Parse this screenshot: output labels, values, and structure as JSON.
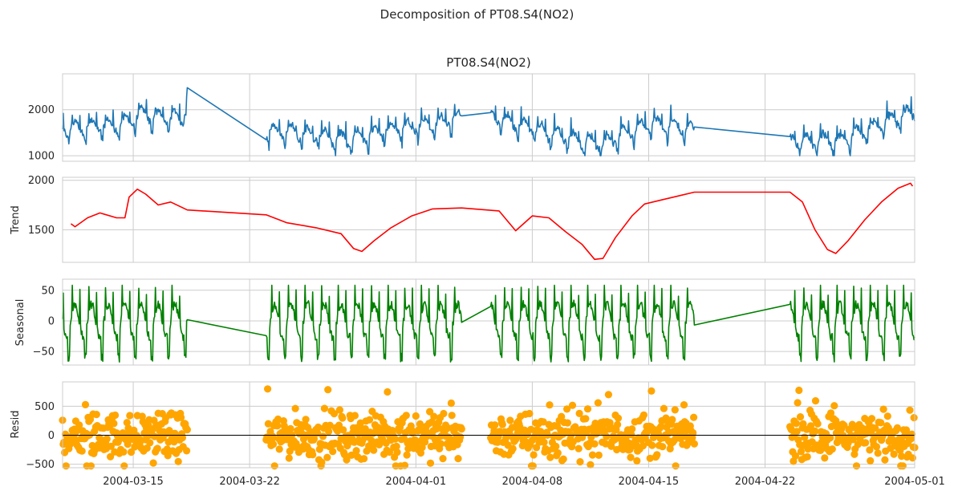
{
  "title": "Decomposition of PT08.S4(NO2)",
  "chart_data": {
    "type": "line",
    "title": "Decomposition of PT08.S4(NO2)",
    "x_axis": {
      "type": "date",
      "xlim": [
        "2004-03-10T18:00",
        "2004-05-01T00:00"
      ],
      "ticks": [
        "2004-03-15",
        "2004-03-22",
        "2004-04-01",
        "2004-04-08",
        "2004-04-15",
        "2004-04-22",
        "2004-05-01"
      ],
      "tick_labels": [
        "2004-03-15",
        "2004-03-22",
        "2004-04-01",
        "2004-04-08",
        "2004-04-15",
        "2004-04-22",
        "2004-05-01"
      ]
    },
    "segments": [
      [
        "2004-03-10T18:00",
        "2004-03-18T06:00"
      ],
      [
        "2004-03-23T00:00",
        "2004-04-03T18:00"
      ],
      [
        "2004-04-05T12:00",
        "2004-04-17T18:00"
      ],
      [
        "2004-04-23T12:00",
        "2004-05-01T00:00"
      ]
    ],
    "grid": true,
    "panels": [
      {
        "key": "observed",
        "title": "PT08.S4(NO2)",
        "ylabel": "",
        "color": "#1f77b4",
        "style": "line",
        "ylim": [
          880,
          2780
        ],
        "yticks": [
          1000,
          2000
        ],
        "range": [
          1000,
          2700
        ],
        "level_points": [
          [
            "2004-03-10T18:00",
            1600
          ],
          [
            "2004-03-14T00:00",
            1650
          ],
          [
            "2004-03-15T12:00",
            1900
          ],
          [
            "2004-03-18T00:00",
            1800
          ],
          [
            "2004-03-18T06:00",
            2470
          ],
          [
            "2004-03-23T00:00",
            1550
          ],
          [
            "2004-03-25T00:00",
            1500
          ],
          [
            "2004-03-28T00:00",
            1350
          ],
          [
            "2004-03-30T00:00",
            1550
          ],
          [
            "2004-04-02T00:00",
            1700
          ],
          [
            "2004-04-03T18:00",
            1830
          ],
          [
            "2004-04-05T12:00",
            1850
          ],
          [
            "2004-04-07T00:00",
            1700
          ],
          [
            "2004-04-09T00:00",
            1500
          ],
          [
            "2004-04-12T00:00",
            1250
          ],
          [
            "2004-04-15T00:00",
            1700
          ],
          [
            "2004-04-17T18:00",
            1580
          ],
          [
            "2004-04-23T12:00",
            1320
          ],
          [
            "2004-04-26T12:00",
            1350
          ],
          [
            "2004-04-29T00:00",
            1700
          ],
          [
            "2004-05-01T00:00",
            1950
          ]
        ],
        "amplitude": 300
      },
      {
        "key": "trend",
        "title": "",
        "ylabel": "Trend",
        "color": "#ff0000",
        "style": "line",
        "ylim": [
          1170,
          2030
        ],
        "yticks": [
          1500,
          2000
        ],
        "range": [
          1190,
          1980
        ],
        "points": [
          [
            "2004-03-11T06:00",
            1560
          ],
          [
            "2004-03-11T12:00",
            1530
          ],
          [
            "2004-03-12T06:00",
            1620
          ],
          [
            "2004-03-13T00:00",
            1670
          ],
          [
            "2004-03-14T00:00",
            1620
          ],
          [
            "2004-03-14T12:00",
            1620
          ],
          [
            "2004-03-14T18:00",
            1830
          ],
          [
            "2004-03-15T06:00",
            1910
          ],
          [
            "2004-03-15T18:00",
            1860
          ],
          [
            "2004-03-16T12:00",
            1750
          ],
          [
            "2004-03-17T06:00",
            1780
          ],
          [
            "2004-03-18T06:00",
            1700
          ],
          [
            "2004-03-23T00:00",
            1650
          ],
          [
            "2004-03-24T06:00",
            1570
          ],
          [
            "2004-03-26T00:00",
            1520
          ],
          [
            "2004-03-27T12:00",
            1460
          ],
          [
            "2004-03-28T06:00",
            1310
          ],
          [
            "2004-03-28T18:00",
            1280
          ],
          [
            "2004-03-29T12:00",
            1390
          ],
          [
            "2004-03-30T12:00",
            1520
          ],
          [
            "2004-03-31T18:00",
            1640
          ],
          [
            "2004-04-02T00:00",
            1710
          ],
          [
            "2004-04-03T18:00",
            1720
          ],
          [
            "2004-04-06T00:00",
            1690
          ],
          [
            "2004-04-07T00:00",
            1490
          ],
          [
            "2004-04-08T00:00",
            1640
          ],
          [
            "2004-04-09T00:00",
            1620
          ],
          [
            "2004-04-10T00:00",
            1480
          ],
          [
            "2004-04-11T00:00",
            1350
          ],
          [
            "2004-04-11T18:00",
            1200
          ],
          [
            "2004-04-12T06:00",
            1210
          ],
          [
            "2004-04-13T00:00",
            1420
          ],
          [
            "2004-04-14T00:00",
            1640
          ],
          [
            "2004-04-14T18:00",
            1760
          ],
          [
            "2004-04-15T18:00",
            1800
          ],
          [
            "2004-04-17T00:00",
            1850
          ],
          [
            "2004-04-17T18:00",
            1880
          ],
          [
            "2004-04-23T12:00",
            1880
          ],
          [
            "2004-04-24T06:00",
            1780
          ],
          [
            "2004-04-25T00:00",
            1500
          ],
          [
            "2004-04-25T18:00",
            1300
          ],
          [
            "2004-04-26T06:00",
            1260
          ],
          [
            "2004-04-27T00:00",
            1390
          ],
          [
            "2004-04-28T00:00",
            1600
          ],
          [
            "2004-04-29T00:00",
            1780
          ],
          [
            "2004-04-30T00:00",
            1920
          ],
          [
            "2004-04-30T18:00",
            1970
          ],
          [
            "2004-04-30T21:00",
            1940
          ]
        ]
      },
      {
        "key": "seasonal",
        "title": "",
        "ylabel": "Seasonal",
        "color": "#008000",
        "style": "line",
        "ylim": [
          -72,
          68
        ],
        "yticks": [
          -50,
          0,
          50
        ],
        "range": [
          -68,
          58
        ],
        "period_hours": 24
      },
      {
        "key": "resid",
        "title": "",
        "ylabel": "Resid",
        "color": "#ffa500",
        "style": "scatter",
        "ylim": [
          -560,
          920
        ],
        "yticks": [
          -500,
          0,
          500
        ],
        "range": [
          -530,
          830
        ],
        "zero_line": true
      }
    ]
  }
}
